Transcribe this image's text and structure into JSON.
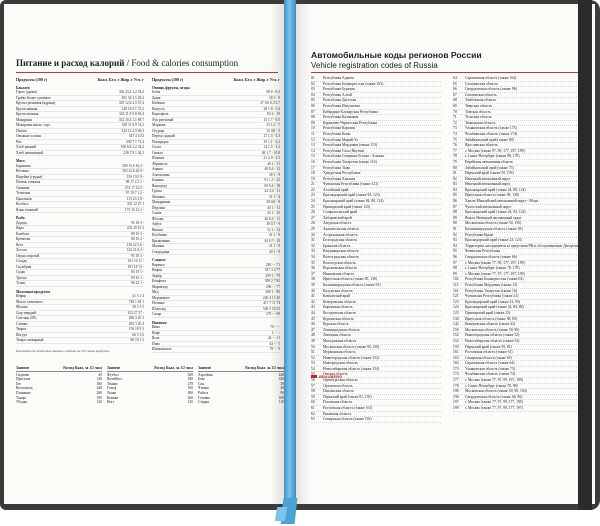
{
  "left_page": {
    "title": "Питание и расход калорий",
    "subtitle": " / Food & calories consumption",
    "col_a_head": {
      "name": "Продукты (100 г)",
      "vals": "Ккал. Бел. г Жир. г Угл. г"
    },
    "col_b_head": {
      "name": "Продукты (100 г)",
      "vals": "Ккал. Бел. г Жир. г Угл. г"
    },
    "col_a": [
      {
        "sec": "Бакалея"
      },
      {
        "n": "Горох (дрова)",
        "v": "336 23,4 1,2 53,2"
      },
      {
        "n": "Грибы белые сушеные",
        "v": "281 36 3,5 20,2"
      },
      {
        "n": "Крупа гречневая (ядрица)",
        "v": "329 12,6 2,5 67,4"
      },
      {
        "n": "Крупа манная",
        "v": "328 10,3 1 73,3"
      },
      {
        "n": "Крупа овсяная",
        "v": "345 11,9 5,8 65,4"
      },
      {
        "n": "Макароны",
        "v": "332 10,4 1,1 69,7"
      },
      {
        "n": "Макароны высш. сорт",
        "v": "338 11 0,9 74,2"
      },
      {
        "n": "Пшено",
        "v": "334 12 2,9 69,3"
      },
      {
        "n": "Овсяные хлопья",
        "v": "347 4 4 52"
      },
      {
        "n": "Рис",
        "v": "330 7 1 71,4"
      },
      {
        "n": "Хлеб ржаной",
        "v": "190 6,6 1,2 34,2"
      },
      {
        "n": "Хлеб пшеничный",
        "v": "226 7,9 1 44,1"
      },
      {
        "sec": "Мясо"
      },
      {
        "n": "Баранина",
        "v": "209 15,6 16,3 -"
      },
      {
        "n": "Ветчина",
        "v": "365 22,6 20,9 -"
      },
      {
        "n": "Индейка (грудка)",
        "v": "156 19,5 8 -"
      },
      {
        "n": "Печень говяжья",
        "v": "98 17,4 3,1 -"
      },
      {
        "n": "Свинина",
        "v": "274 17 23,5 -"
      },
      {
        "n": "Телятина",
        "v": "97 19,7 1,2 -"
      },
      {
        "n": "Цыпленок",
        "v": "113 23 1,8 -"
      },
      {
        "n": "Колбаса",
        "v": "301 12 27 1"
      },
      {
        "n": "Язык говяжий",
        "v": "173 16 12,1 -"
      },
      {
        "sec": "Рыба"
      },
      {
        "n": "Дорадо",
        "v": "95 18 3 -"
      },
      {
        "n": "Икра",
        "v": "252 29 10 2"
      },
      {
        "n": "Камбала",
        "v": "88 16 3 -"
      },
      {
        "n": "Креветки",
        "v": "86 16 2 -"
      },
      {
        "n": "Кета",
        "v": "138 22 5,6 -"
      },
      {
        "n": "Лосось",
        "v": "142 21 6,3 -"
      },
      {
        "n": "Окунь морской",
        "v": "95 18 3 -"
      },
      {
        "n": "Сельдь",
        "v": "161 16 11 -"
      },
      {
        "n": "Скумбрия",
        "v": "191 18 13 -"
      },
      {
        "n": "Судак",
        "v": "83 19 1 -"
      },
      {
        "n": "Треска",
        "v": "69 16 1 -"
      },
      {
        "n": "Тунец",
        "v": "96 22 1 -"
      },
      {
        "sec": "Молочные продукты"
      },
      {
        "n": "Кефир",
        "v": "41 3 1 4"
      },
      {
        "n": "Масло сливочное",
        "v": "748 1 82 1"
      },
      {
        "n": "Молоко",
        "v": "58 3 3 5"
      },
      {
        "n": "Сыр твердый",
        "v": "352 27 27 -"
      },
      {
        "n": "Сметана 20%",
        "v": "206 3 20 3"
      },
      {
        "n": "Сливки",
        "v": "205 3 20 4"
      },
      {
        "n": "Творог",
        "v": "156 18 9 3"
      },
      {
        "n": "Йогурт",
        "v": "66 5 3 6"
      },
      {
        "n": "Творог нежирный",
        "v": "86 18 1 2"
      }
    ],
    "col_b": [
      {
        "sec": "Овощи, фрукты, ягоды"
      },
      {
        "n": "Бобы",
        "v": "58 6 - 8,3"
      },
      {
        "n": "Дыня",
        "v": "38 1 - 9"
      },
      {
        "n": "Кабачки",
        "v": "27 0,6 0,3 5,7"
      },
      {
        "n": "Капуста",
        "v": "28 1,8 - 5,4"
      },
      {
        "n": "Картофель",
        "v": "83 2 - 19"
      },
      {
        "n": "Лук репчатый",
        "v": "43 1,7 - 9,5"
      },
      {
        "n": "Морковь",
        "v": "33 1,3 - 7"
      },
      {
        "n": "Огурцы",
        "v": "15 0,8 - 3"
      },
      {
        "n": "Перец сладкий",
        "v": "27 1,3 - 5,3"
      },
      {
        "n": "Помидоры",
        "v": "19 1,1 - 4,2"
      },
      {
        "n": "Салат",
        "v": "14 1,5 - 2,2"
      },
      {
        "n": "Свекла",
        "v": "48 1,7 - 10,8"
      },
      {
        "n": "Шпинат",
        "v": "21 2,9 - 2,3"
      },
      {
        "n": "Абрикосы",
        "v": "46 1 - 11"
      },
      {
        "n": "Ананас",
        "v": "48 0,4 - 12"
      },
      {
        "n": "Апельсины",
        "v": "38 1 - 9"
      },
      {
        "n": "Бананы",
        "v": "91 1,5 - 22"
      },
      {
        "n": "Виноград",
        "v": "69 0,4 - 18"
      },
      {
        "n": "Груша",
        "v": "42 0,4 - 11"
      },
      {
        "n": "Лимоны",
        "v": "31 1 - 4"
      },
      {
        "n": "Мандарины",
        "v": "38 0,8 - 9"
      },
      {
        "n": "Персики",
        "v": "43 1 - 11"
      },
      {
        "n": "Слива",
        "v": "43 1 - 10"
      },
      {
        "n": "Яблоки",
        "v": "46 0,4 - 11"
      },
      {
        "n": "Арбуз",
        "v": "38 0,7 - 9"
      },
      {
        "n": "Вишня",
        "v": "52 1 - 12"
      },
      {
        "n": "Клубника",
        "v": "41 1 - 9"
      },
      {
        "n": "Крыжовник",
        "v": "44 0,7 - 10"
      },
      {
        "n": "Малина",
        "v": "41 1 - 9"
      },
      {
        "n": "Смородина",
        "v": "40 1 - 9"
      },
      {
        "sec": "Сладкое"
      },
      {
        "n": "Варенье",
        "v": "265 - - 71"
      },
      {
        "n": "Вафли",
        "v": "337 3 4 77"
      },
      {
        "n": "Зефир",
        "v": "299 1 - 79"
      },
      {
        "n": "Конфеты",
        "v": "398 2 7 82"
      },
      {
        "n": "Мармелад",
        "v": "296 - - 77"
      },
      {
        "n": "Мед",
        "v": "308 1 - 80"
      },
      {
        "n": "Мороженое",
        "v": "226 4 15 20"
      },
      {
        "n": "Печенье",
        "v": "417 7 11 74"
      },
      {
        "n": "Шоколад",
        "v": "540 5 35 53"
      },
      {
        "n": "Сахар",
        "v": "379 - - 99"
      },
      {
        "sec": "Напитки"
      },
      {
        "n": "Вино",
        "v": "70 - - -"
      },
      {
        "n": "Кофе",
        "v": "1 - - -"
      },
      {
        "n": "Кола",
        "v": "42 - - 11"
      },
      {
        "n": "Пиво",
        "v": "43 - - 5"
      },
      {
        "n": "Шампанское",
        "v": "78 - - 9"
      }
    ],
    "note": "Калорийность продуктов указана в среднем на 100 грамм продукта.",
    "activities": [
      {
        "head": {
          "n": "Занятие",
          "v": "Расход Ккал. за 1/2 часа"
        },
        "rows": [
          {
            "n": "Сидячие",
            "v": "40"
          },
          {
            "n": "Прогулка",
            "v": "140"
          },
          {
            "n": "Бег",
            "v": "360"
          },
          {
            "n": "Велосипед",
            "v": "240"
          },
          {
            "n": "Плавание",
            "v": "260"
          },
          {
            "n": "Танцы",
            "v": "190"
          },
          {
            "n": "Уборка",
            "v": "120"
          }
        ]
      },
      {
        "head": {
          "n": "Занятие",
          "v": "Расход Ккал. за 1/2 часа"
        },
        "rows": [
          {
            "n": "Футбол",
            "v": "300"
          },
          {
            "n": "Волейбол",
            "v": "180"
          },
          {
            "n": "Теннис",
            "v": "270"
          },
          {
            "n": "Гольф",
            "v": "160"
          },
          {
            "n": "Лыжи",
            "v": "300"
          },
          {
            "n": "Коньки",
            "v": "260"
          },
          {
            "n": "Йога",
            "v": "120"
          }
        ]
      },
      {
        "head": {
          "n": "Занятие",
          "v": "Расход Ккал. за 1/2 часа"
        },
        "rows": [
          {
            "n": "Аэробика",
            "v": "240"
          },
          {
            "n": "Бокс",
            "v": "330"
          },
          {
            "n": "Сон",
            "v": "30"
          },
          {
            "n": "Чтение",
            "v": "40"
          },
          {
            "n": "Работа",
            "v": "90"
          },
          {
            "n": "Готовка",
            "v": "100"
          },
          {
            "n": "Стирка",
            "v": "110"
          }
        ]
      }
    ]
  },
  "right_page": {
    "title": "Автомобильные коды регионов России",
    "subtitle": "Vehicle registration codes of Russia",
    "col_a": [
      {
        "c": "01",
        "r": "Республика Адыгея"
      },
      {
        "c": "02",
        "r": "Республика Башкортостан (также 102)"
      },
      {
        "c": "03",
        "r": "Республика Бурятия"
      },
      {
        "c": "04",
        "r": "Республика Алтай"
      },
      {
        "c": "05",
        "r": "Республика Дагестан"
      },
      {
        "c": "06",
        "r": "Республика Ингушетия"
      },
      {
        "c": "07",
        "r": "Кабардино-Балкарская Республика"
      },
      {
        "c": "08",
        "r": "Республика Калмыкия"
      },
      {
        "c": "09",
        "r": "Карачаево-Черкесская Республика"
      },
      {
        "c": "10",
        "r": "Республика Карелия"
      },
      {
        "c": "11",
        "r": "Республика Коми"
      },
      {
        "c": "12",
        "r": "Республика Марий Эл"
      },
      {
        "c": "13",
        "r": "Республика Мордовия (также 113)"
      },
      {
        "c": "14",
        "r": "Республика Саха (Якутия)"
      },
      {
        "c": "15",
        "r": "Республика Северная Осетия - Алания"
      },
      {
        "c": "16",
        "r": "Республика Татарстан (также 116)"
      },
      {
        "c": "17",
        "r": "Республика Тыва"
      },
      {
        "c": "18",
        "r": "Удмуртская Республика"
      },
      {
        "c": "19",
        "r": "Республика Хакасия"
      },
      {
        "c": "21",
        "r": "Чувашская Республика (также 121)"
      },
      {
        "c": "22",
        "r": "Алтайский край"
      },
      {
        "c": "23",
        "r": "Краснодарский край (также 93, 123)"
      },
      {
        "c": "24",
        "r": "Красноярский край (также 84, 88, 124)"
      },
      {
        "c": "25",
        "r": "Приморский край (также 125)"
      },
      {
        "c": "26",
        "r": "Ставропольский край"
      },
      {
        "c": "27",
        "r": "Хабаровский край"
      },
      {
        "c": "28",
        "r": "Амурская область"
      },
      {
        "c": "29",
        "r": "Архангельская область"
      },
      {
        "c": "30",
        "r": "Астраханская область"
      },
      {
        "c": "31",
        "r": "Белгородская область"
      },
      {
        "c": "32",
        "r": "Брянская область"
      },
      {
        "c": "33",
        "r": "Владимирская область"
      },
      {
        "c": "34",
        "r": "Волгоградская область"
      },
      {
        "c": "35",
        "r": "Вологодская область"
      },
      {
        "c": "36",
        "r": "Воронежская область"
      },
      {
        "c": "37",
        "r": "Ивановская область"
      },
      {
        "c": "38",
        "r": "Иркутская область (также 85, 138)"
      },
      {
        "c": "39",
        "r": "Калининградская область (также 91)"
      },
      {
        "c": "40",
        "r": "Калужская область"
      },
      {
        "c": "41",
        "r": "Камчатский край"
      },
      {
        "c": "42",
        "r": "Кемеровская область"
      },
      {
        "c": "43",
        "r": "Кировская область"
      },
      {
        "c": "44",
        "r": "Костромская область"
      },
      {
        "c": "45",
        "r": "Курганская область"
      },
      {
        "c": "46",
        "r": "Курская область"
      },
      {
        "c": "47",
        "r": "Ленинградская область"
      },
      {
        "c": "48",
        "r": "Липецкая область"
      },
      {
        "c": "49",
        "r": "Магаданская область"
      },
      {
        "c": "50",
        "r": "Московская область (также 90, 150)"
      },
      {
        "c": "51",
        "r": "Мурманская область"
      },
      {
        "c": "52",
        "r": "Нижегородская область (также 152)"
      },
      {
        "c": "53",
        "r": "Новгородская область"
      },
      {
        "c": "54",
        "r": "Новосибирская область (также 154)"
      },
      {
        "c": "55",
        "r": "Омская область"
      },
      {
        "c": "56",
        "r": "Оренбургская область"
      },
      {
        "c": "57",
        "r": "Орловская область"
      },
      {
        "c": "58",
        "r": "Пензенская область"
      },
      {
        "c": "59",
        "r": "Пермский край (также 81, 159)"
      },
      {
        "c": "60",
        "r": "Псковская область"
      },
      {
        "c": "61",
        "r": "Ростовская область (также 161)"
      },
      {
        "c": "62",
        "r": "Рязанская область"
      },
      {
        "c": "63",
        "r": "Самарская область (также 163)"
      }
    ],
    "col_b": [
      {
        "c": "64",
        "r": "Саратовская область (также 164)"
      },
      {
        "c": "65",
        "r": "Сахалинская область"
      },
      {
        "c": "66",
        "r": "Свердловская область (также 96)"
      },
      {
        "c": "67",
        "r": "Смоленская область"
      },
      {
        "c": "68",
        "r": "Тамбовская область"
      },
      {
        "c": "69",
        "r": "Тверская область"
      },
      {
        "c": "70",
        "r": "Томская область"
      },
      {
        "c": "71",
        "r": "Тульская область"
      },
      {
        "c": "72",
        "r": "Тюменская область"
      },
      {
        "c": "73",
        "r": "Ульяновская область (также 173)"
      },
      {
        "c": "74",
        "r": "Челябинская область (также 174)"
      },
      {
        "c": "75",
        "r": "Забайкальский край (также 80)"
      },
      {
        "c": "76",
        "r": "Ярославская область"
      },
      {
        "c": "77",
        "r": "г. Москва (также 97, 99, 177, 197, 199)"
      },
      {
        "c": "78",
        "r": "г. Санкт-Петербург (также 98, 178)"
      },
      {
        "c": "79",
        "r": "Еврейская автономная область"
      },
      {
        "c": "80",
        "r": "Забайкальский край (также 75)"
      },
      {
        "c": "81",
        "r": "Пермский край (также 59, 159)"
      },
      {
        "c": "82",
        "r": "Ненецкий автономный округ"
      },
      {
        "c": "83",
        "r": "Ненецкий автономный округ"
      },
      {
        "c": "84",
        "r": "Красноярский край (также 24, 88, 124)"
      },
      {
        "c": "85",
        "r": "Иркутская область (также 38, 138)"
      },
      {
        "c": "86",
        "r": "Ханты-Мансийский автономный округ - Югра"
      },
      {
        "c": "87",
        "r": "Чукотский автономный округ"
      },
      {
        "c": "88",
        "r": "Красноярский край (также 24, 84, 124)"
      },
      {
        "c": "89",
        "r": "Ямало-Ненецкий автономный округ"
      },
      {
        "c": "90",
        "r": "Московская область (также 50, 150)"
      },
      {
        "c": "91",
        "r": "Калининградская область (также 39)"
      },
      {
        "c": "92",
        "r": "Республика Крым"
      },
      {
        "c": "93",
        "r": "Краснодарский край (также 23, 123)"
      },
      {
        "c": "94",
        "r": "Территории, находящиеся за пределами РФ и обслуживаемые Департаментом режимных объектов МВД РФ"
      },
      {
        "c": "95",
        "r": "Чеченская Республика"
      },
      {
        "c": "96",
        "r": "Свердловская область (также 66)"
      },
      {
        "c": "97",
        "r": "г. Москва (также 77, 99, 177, 197, 199)"
      },
      {
        "c": "98",
        "r": "г. Санкт-Петербург (также 78, 178)"
      },
      {
        "c": "99",
        "r": "г. Москва (также 77, 97, 177, 197, 199)"
      },
      {
        "c": "102",
        "r": "Республика Башкортостан (также 02)"
      },
      {
        "c": "113",
        "r": "Республика Мордовия (также 13)"
      },
      {
        "c": "116",
        "r": "Республика Татарстан (также 16)"
      },
      {
        "c": "121",
        "r": "Чувашская Республика (также 21)"
      },
      {
        "c": "123",
        "r": "Краснодарский край (также 23, 93)"
      },
      {
        "c": "124",
        "r": "Красноярский край (также 24, 84, 88)"
      },
      {
        "c": "125",
        "r": "Приморский край (также 25)"
      },
      {
        "c": "138",
        "r": "Иркутская область (также 38, 85)"
      },
      {
        "c": "142",
        "r": "Кемеровская область (также 42)"
      },
      {
        "c": "150",
        "r": "Московская область (также 50, 90)"
      },
      {
        "c": "152",
        "r": "Нижегородская область (также 52)"
      },
      {
        "c": "154",
        "r": "Новосибирская область (также 54)"
      },
      {
        "c": "159",
        "r": "Пермский край (также 59, 81)"
      },
      {
        "c": "161",
        "r": "Ростовская область (также 61)"
      },
      {
        "c": "163",
        "r": "Самарская область (также 63)"
      },
      {
        "c": "164",
        "r": "Саратовская область (также 64)"
      },
      {
        "c": "173",
        "r": "Ульяновская область (также 73)"
      },
      {
        "c": "174",
        "r": "Челябинская область (также 74)"
      },
      {
        "c": "177",
        "r": "г. Москва (также 77, 97, 99, 197, 199)"
      },
      {
        "c": "178",
        "r": "г. Санкт-Петербург (также 78, 98)"
      },
      {
        "c": "190",
        "r": "Московская область (также 50, 90, 150)"
      },
      {
        "c": "196",
        "r": "Свердловская область (также 66, 96)"
      },
      {
        "c": "197",
        "r": "г. Москва (также 77, 97, 99, 177, 199)"
      },
      {
        "c": "199",
        "r": "г. Москва (также 77, 97, 99, 177, 197)"
      }
    ],
    "logo": "BRAUBERG"
  }
}
